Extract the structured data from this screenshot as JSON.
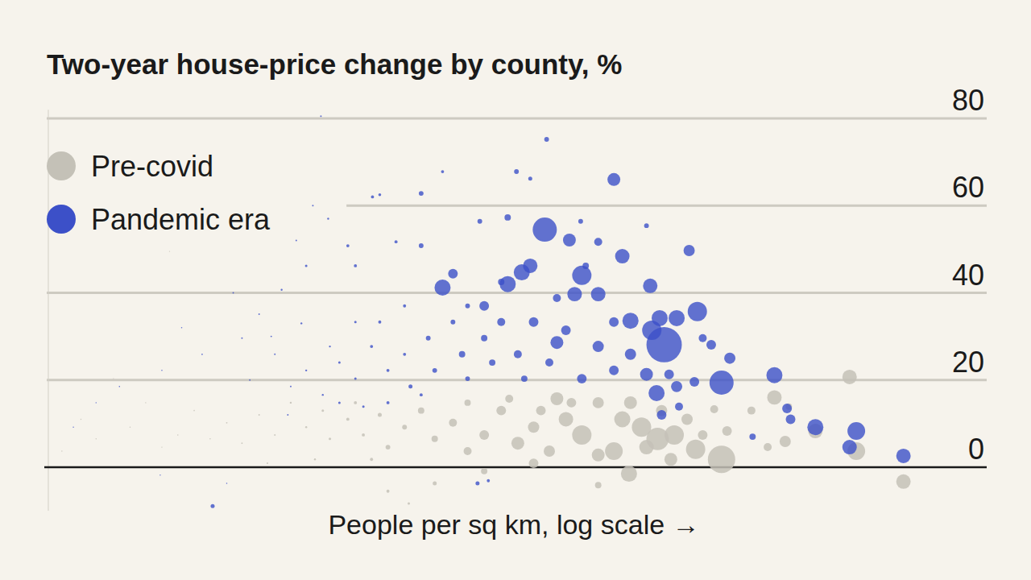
{
  "chart_data": {
    "type": "scatter",
    "title": "Two-year house-price change by county, %",
    "x_label": "People per sq km, log scale →",
    "log": "x",
    "grid": true,
    "legend": "top-left",
    "tick_labels": "y",
    "marker": "circle",
    "xlim": [
      0.1,
      30000
    ],
    "ylim": [
      -10,
      82
    ],
    "yticks": [
      0,
      20,
      40,
      60,
      80
    ],
    "series": [
      {
        "name": "Pre-covid",
        "color": "#c4c1b7",
        "x": [
          850,
          245,
          4750,
          1730,
          5200,
          9800,
          3000,
          2000,
          600,
          450,
          360,
          290,
          224,
          200,
          162,
          130,
          105,
          93,
          162,
          162,
          380,
          535,
          915,
          1270,
          770,
          68,
          55,
          44,
          35,
          28,
          23,
          18,
          15,
          12,
          9.6,
          8.6,
          6.9,
          5.6,
          4.4,
          4,
          3.2,
          2.6,
          2.1,
          1.7,
          1.35,
          1.1,
          0.88,
          0.71,
          0.57,
          0.46,
          0.37,
          0.3,
          0.24,
          0.19,
          0.155,
          0.12,
          0.51,
          9.6,
          18,
          12.7,
          35,
          68,
          113,
          75,
          250,
          310,
          430,
          84,
          49,
          28,
          6.2,
          7.7,
          3.6,
          1.9,
          1580,
          2100,
          660
        ],
        "values": [
          1.8,
          -1.5,
          20.7,
          16,
          3.7,
          -3.3,
          8.3,
          5.9,
          4.1,
          7.4,
          6.5,
          9.2,
          11,
          3.7,
          2.8,
          7.4,
          11,
          15.7,
          -4.1,
          14.8,
          13,
          11,
          8.3,
          13,
          13.3,
          9.2,
          5.5,
          13,
          7.4,
          3.7,
          10.2,
          6.5,
          13,
          9.2,
          4.6,
          12,
          7.4,
          11,
          6.5,
          13,
          9.2,
          14.8,
          7.4,
          12,
          5.5,
          10.2,
          6.5,
          13,
          7.4,
          4.6,
          14.8,
          9.2,
          20.3,
          6.5,
          11,
          3.7,
          49.5,
          -5.5,
          -3.7,
          -8.3,
          -0.9,
          0.9,
          14.8,
          13,
          14.8,
          4.6,
          1.8,
          3.7,
          15.7,
          14.8,
          14.8,
          1.8,
          1.8,
          0.9,
          4.6,
          13.9,
          7.4
        ],
        "sizes": [
          6800,
          2250,
          1800,
          1800,
          2750,
          1800,
          1800,
          1050,
          3300,
          3300,
          4500,
          3300,
          2250,
          2750,
          1400,
          3300,
          1800,
          1400,
          300,
          1050,
          1050,
          1050,
          750,
          500,
          500,
          1050,
          1400,
          750,
          750,
          500,
          500,
          300,
          300,
          150,
          150,
          100,
          50,
          50,
          25,
          25,
          12,
          12,
          6,
          6,
          4,
          4,
          2,
          2,
          2,
          1,
          1,
          1,
          1,
          1,
          1,
          1,
          1,
          50,
          100,
          25,
          300,
          750,
          750,
          750,
          1400,
          1800,
          1400,
          1050,
          500,
          300,
          50,
          50,
          12,
          6,
          500,
          300,
          750
        ]
      },
      {
        "name": "Pandemic era",
        "color": "#3c50c8",
        "x": [
          3.9,
          81,
          200,
          79,
          393,
          850,
          614,
          130,
          20,
          48,
          58,
          224,
          250,
          333,
          326,
          370,
          465,
          550,
          1730,
          3000,
          5200,
          4750,
          9800,
          2050,
          2150,
          1290,
          950,
          740,
          355,
          420,
          162,
          110,
          118,
          93,
          65,
          35,
          23,
          15,
          20,
          54,
          65,
          7.8,
          8.6,
          4.3,
          0.91,
          33,
          128,
          137,
          310,
          162,
          48,
          15,
          10.7,
          6.2,
          5.6,
          3.2,
          2.3,
          1.7,
          1.35,
          0.79,
          0.46,
          0.26,
          0.19,
          0.14,
          5,
          6.2,
          7.7,
          9.6,
          12,
          13,
          16.5,
          18,
          23,
          26,
          28,
          35,
          39,
          44,
          55,
          60,
          68,
          84,
          105,
          130,
          162,
          200,
          250,
          310,
          200,
          93,
          44,
          28,
          12,
          8.6,
          6.2,
          4.4,
          3.2,
          2.6,
          2.1,
          4,
          5,
          6.9,
          9.6,
          15,
          32,
          37,
          1.1,
          0.45,
          660,
          480,
          380,
          465,
          590,
          2.8,
          3.5,
          1.2,
          0.6,
          2,
          3,
          1.5,
          2.5
        ],
        "values": [
          80.5,
          75.2,
          66,
          54.5,
          28.1,
          19.4,
          35.7,
          44,
          41.2,
          42,
          44.7,
          48.4,
          33.6,
          31.4,
          41.6,
          34.2,
          34.2,
          49.7,
          21.1,
          9.2,
          8.3,
          4.6,
          2.6,
          13.5,
          11,
          7,
          25,
          28.1,
          17,
          21.3,
          39.7,
          52.1,
          39.7,
          28.6,
          46.2,
          37,
          44.4,
          62.8,
          67.8,
          67.8,
          66.2,
          62,
          62.5,
          57,
          -8.9,
          56.4,
          56.4,
          46.2,
          55.4,
          51.7,
          57.3,
          50.8,
          51.7,
          46.2,
          50.8,
          46.2,
          40.7,
          35.1,
          29.6,
          25.9,
          22.2,
          18.5,
          14.8,
          9.2,
          24,
          20.3,
          27.7,
          22.2,
          25.9,
          18.5,
          29.6,
          22.2,
          33.3,
          25.9,
          20.3,
          29.6,
          24,
          33.3,
          25.9,
          20.3,
          33.3,
          24,
          31.4,
          20.3,
          27.7,
          22.2,
          25.9,
          21.3,
          33.3,
          38.8,
          42.5,
          37,
          37,
          33.3,
          33.3,
          27.7,
          22.2,
          18.5,
          25.9,
          16.6,
          14.8,
          13.9,
          14.8,
          16.6,
          -3.7,
          -3.1,
          -3.7,
          -1.8,
          29.6,
          13.9,
          12,
          18.5,
          19.6,
          52,
          60,
          40,
          32,
          30,
          33,
          20,
          12
        ],
        "sizes": [
          6,
          150,
          1400,
          5250,
          11500,
          5250,
          3300,
          3300,
          2250,
          2250,
          2250,
          1800,
          2250,
          3300,
          1800,
          2250,
          2250,
          1050,
          2250,
          2250,
          2750,
          1800,
          1800,
          750,
          750,
          300,
          1050,
          750,
          2250,
          750,
          1800,
          1400,
          1800,
          1400,
          1800,
          750,
          750,
          150,
          50,
          150,
          100,
          50,
          40,
          12,
          100,
          150,
          150,
          300,
          150,
          500,
          300,
          150,
          50,
          50,
          50,
          25,
          12,
          6,
          6,
          4,
          2,
          2,
          1,
          1,
          25,
          25,
          50,
          50,
          50,
          100,
          150,
          150,
          150,
          300,
          150,
          300,
          300,
          500,
          500,
          300,
          750,
          500,
          750,
          750,
          1050,
          750,
          1050,
          1400,
          750,
          500,
          300,
          150,
          50,
          50,
          25,
          12,
          12,
          6,
          6,
          12,
          25,
          25,
          50,
          50,
          100,
          50,
          2,
          1,
          500,
          500,
          750,
          1050,
          750,
          6,
          6,
          4,
          2,
          6,
          12,
          4,
          6
        ]
      }
    ]
  }
}
